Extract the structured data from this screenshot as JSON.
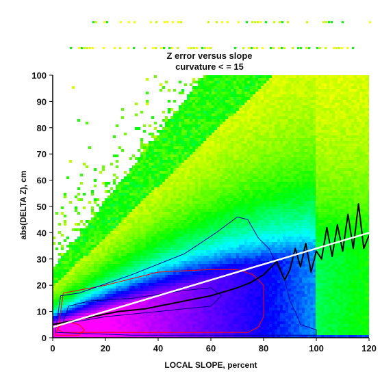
{
  "chart_data": {
    "type": "heatmap",
    "title": "Z error versus slope",
    "subtitle": "curvature < = 15",
    "xlabel": "LOCAL SLOPE, percent",
    "ylabel": "abs(DELTA Z), cm",
    "xlim": [
      0,
      120
    ],
    "ylim": [
      0,
      100
    ],
    "x_ticks": [
      "0",
      "20",
      "40",
      "60",
      "80",
      "100",
      "120"
    ],
    "y_ticks": [
      "0",
      "10",
      "20",
      "30",
      "40",
      "50",
      "60",
      "70",
      "80",
      "90",
      "100"
    ],
    "color_scale": [
      "#ffffff",
      "#ffff00",
      "#00ff00",
      "#00ffff",
      "#0000ff",
      "#8000ff",
      "#ff00ff"
    ],
    "grid": false,
    "series": [
      {
        "type": "line",
        "color": "#000000",
        "x": [
          0,
          5,
          10,
          15,
          20,
          25,
          30,
          35,
          40,
          45,
          50,
          55,
          60,
          65,
          70,
          75,
          80,
          85,
          88,
          90,
          92,
          94,
          96,
          98,
          100,
          102,
          104,
          106,
          108,
          110,
          112,
          114,
          116,
          118,
          120
        ],
        "y": [
          5,
          6,
          7,
          8,
          9,
          10,
          10.5,
          11,
          12,
          13,
          14,
          15,
          16,
          17.5,
          19,
          21,
          24,
          29,
          22,
          26,
          34,
          27,
          36,
          25,
          33,
          30,
          42,
          31,
          43,
          33,
          47,
          34,
          51,
          34,
          39
        ]
      },
      {
        "type": "line",
        "color": "#ffffff",
        "x": [
          0,
          120
        ],
        "y": [
          4,
          40
        ]
      }
    ]
  }
}
